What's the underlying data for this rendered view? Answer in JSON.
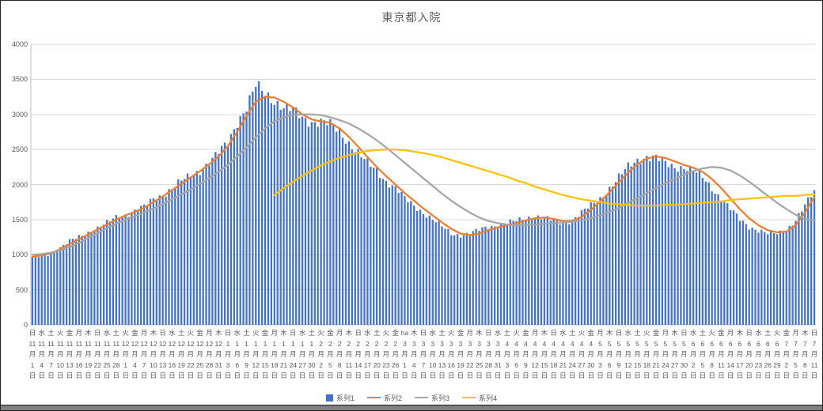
{
  "title": "東京都入院",
  "legend": [
    "系列1",
    "系列2",
    "系列3",
    "系列4"
  ],
  "colors": {
    "bar": "#4472C4",
    "line2": "#ED7D31",
    "line3": "#A5A5A5",
    "line4": "#FFC000",
    "grid": "#D9D9D9",
    "axis": "#BFBFBF",
    "axis_text": "#595959",
    "title_text": "#595959",
    "bottom_bar": "#7f7f7f"
  },
  "y_axis": {
    "min": 0,
    "max": 4000,
    "step": 500,
    "labels": [
      "0",
      "500",
      "1000",
      "1500",
      "2000",
      "2500",
      "3000",
      "3500",
      "4000"
    ]
  },
  "x_axis": {
    "note": "daily bars, tick label every 3 days, vertical stacked format: 曜日 / 月 / 日",
    "ticks": [
      [
        "日",
        "11",
        "1"
      ],
      [
        "水",
        "11",
        "4"
      ],
      [
        "土",
        "11",
        "7"
      ],
      [
        "火",
        "11",
        "10"
      ],
      [
        "金",
        "11",
        "13"
      ],
      [
        "月",
        "11",
        "16"
      ],
      [
        "木",
        "11",
        "19"
      ],
      [
        "日",
        "11",
        "22"
      ],
      [
        "水",
        "11",
        "25"
      ],
      [
        "土",
        "11",
        "28"
      ],
      [
        "火",
        "12",
        "1"
      ],
      [
        "金",
        "12",
        "4"
      ],
      [
        "月",
        "12",
        "7"
      ],
      [
        "木",
        "12",
        "10"
      ],
      [
        "日",
        "12",
        "13"
      ],
      [
        "水",
        "12",
        "16"
      ],
      [
        "土",
        "12",
        "19"
      ],
      [
        "火",
        "12",
        "22"
      ],
      [
        "金",
        "12",
        "25"
      ],
      [
        "月",
        "12",
        "28"
      ],
      [
        "木",
        "12",
        "31"
      ],
      [
        "日",
        "1",
        "3"
      ],
      [
        "水",
        "1",
        "6"
      ],
      [
        "土",
        "1",
        "9"
      ],
      [
        "火",
        "1",
        "12"
      ],
      [
        "金",
        "1",
        "15"
      ],
      [
        "月",
        "1",
        "18"
      ],
      [
        "木",
        "1",
        "21"
      ],
      [
        "日",
        "1",
        "24"
      ],
      [
        "水",
        "1",
        "27"
      ],
      [
        "土",
        "1",
        "30"
      ],
      [
        "火",
        "2",
        "2"
      ],
      [
        "金",
        "2",
        "5"
      ],
      [
        "月",
        "2",
        "8"
      ],
      [
        "木",
        "2",
        "11"
      ],
      [
        "日",
        "2",
        "14"
      ],
      [
        "水",
        "2",
        "17"
      ],
      [
        "土",
        "2",
        "20"
      ],
      [
        "火",
        "2",
        "23"
      ],
      [
        "金",
        "2",
        "26"
      ],
      [
        "ha",
        "3",
        "1"
      ],
      [
        "木",
        "3",
        "4"
      ],
      [
        "日",
        "3",
        "7"
      ],
      [
        "水",
        "3",
        "10"
      ],
      [
        "土",
        "3",
        "13"
      ],
      [
        "火",
        "3",
        "16"
      ],
      [
        "金",
        "3",
        "19"
      ],
      [
        "月",
        "3",
        "22"
      ],
      [
        "木",
        "3",
        "25"
      ],
      [
        "日",
        "3",
        "28"
      ],
      [
        "水",
        "3",
        "31"
      ],
      [
        "土",
        "4",
        "3"
      ],
      [
        "火",
        "4",
        "6"
      ],
      [
        "金",
        "4",
        "9"
      ],
      [
        "月",
        "4",
        "12"
      ],
      [
        "木",
        "4",
        "15"
      ],
      [
        "日",
        "4",
        "18"
      ],
      [
        "水",
        "4",
        "21"
      ],
      [
        "土",
        "4",
        "24"
      ],
      [
        "火",
        "4",
        "27"
      ],
      [
        "金",
        "4",
        "30"
      ],
      [
        "月",
        "5",
        "3"
      ],
      [
        "木",
        "5",
        "6"
      ],
      [
        "日",
        "5",
        "9"
      ],
      [
        "水",
        "5",
        "12"
      ],
      [
        "土",
        "5",
        "15"
      ],
      [
        "火",
        "5",
        "18"
      ],
      [
        "金",
        "5",
        "21"
      ],
      [
        "月",
        "5",
        "24"
      ],
      [
        "木",
        "5",
        "27"
      ],
      [
        "日",
        "5",
        "30"
      ],
      [
        "水",
        "6",
        "2"
      ],
      [
        "土",
        "6",
        "5"
      ],
      [
        "火",
        "6",
        "8"
      ],
      [
        "金",
        "6",
        "11"
      ],
      [
        "月",
        "6",
        "14"
      ],
      [
        "木",
        "6",
        "17"
      ],
      [
        "日",
        "6",
        "20"
      ],
      [
        "水",
        "6",
        "23"
      ],
      [
        "土",
        "6",
        "26"
      ],
      [
        "火",
        "6",
        "29"
      ],
      [
        "金",
        "7",
        "2"
      ],
      [
        "月",
        "7",
        "5"
      ],
      [
        "木",
        "7",
        "8"
      ],
      [
        "日",
        "7",
        "11"
      ]
    ]
  },
  "chart_data": {
    "type": "bar+line combo",
    "title": "東京都入院",
    "ylim": [
      0,
      4000
    ],
    "grid": "horizontal, every 500",
    "legend_position": "bottom center",
    "x_range": "11月1日 〜 7月11日 (values sampled at each 3-day tick; bars are daily)",
    "series": [
      {
        "name": "系列1",
        "type": "bar",
        "color": "#4472C4",
        "values": [
          960,
          980,
          1020,
          1100,
          1190,
          1250,
          1320,
          1380,
          1450,
          1530,
          1570,
          1630,
          1680,
          1790,
          1850,
          1950,
          2050,
          2120,
          2200,
          2320,
          2450,
          2600,
          2900,
          3100,
          3400,
          3300,
          3200,
          3100,
          3050,
          2950,
          2900,
          2900,
          2850,
          2750,
          2600,
          2450,
          2300,
          2200,
          2050,
          1950,
          1800,
          1700,
          1600,
          1500,
          1400,
          1300,
          1280,
          1300,
          1350,
          1400,
          1420,
          1450,
          1480,
          1520,
          1550,
          1520,
          1480,
          1450,
          1500,
          1600,
          1700,
          1800,
          1950,
          2100,
          2250,
          2350,
          2400,
          2380,
          2300,
          2250,
          2250,
          2200,
          2100,
          1950,
          1800,
          1650,
          1500,
          1400,
          1350,
          1300,
          1300,
          1350,
          1500,
          1700,
          1900
        ]
      },
      {
        "name": "系列2",
        "type": "line",
        "color": "#ED7D31",
        "values": [
          970,
          990,
          1020,
          1080,
          1150,
          1220,
          1290,
          1360,
          1430,
          1500,
          1560,
          1610,
          1670,
          1750,
          1830,
          1920,
          2010,
          2100,
          2190,
          2290,
          2400,
          2550,
          2750,
          2980,
          3180,
          3250,
          3240,
          3180,
          3100,
          3000,
          2930,
          2900,
          2880,
          2800,
          2680,
          2540,
          2390,
          2250,
          2120,
          2000,
          1880,
          1770,
          1660,
          1560,
          1460,
          1370,
          1300,
          1280,
          1300,
          1350,
          1390,
          1420,
          1450,
          1490,
          1520,
          1530,
          1510,
          1480,
          1480,
          1540,
          1640,
          1760,
          1890,
          2030,
          2170,
          2290,
          2370,
          2400,
          2380,
          2330,
          2280,
          2240,
          2180,
          2080,
          1950,
          1800,
          1650,
          1520,
          1420,
          1350,
          1320,
          1330,
          1420,
          1600,
          1820
        ]
      },
      {
        "name": "系列3",
        "type": "line",
        "color": "#A5A5A5",
        "values": [
          1000,
          1010,
          1030,
          1060,
          1110,
          1170,
          1240,
          1310,
          1380,
          1440,
          1500,
          1550,
          1600,
          1660,
          1720,
          1790,
          1860,
          1930,
          2010,
          2090,
          2180,
          2280,
          2400,
          2530,
          2670,
          2800,
          2900,
          2960,
          2990,
          3000,
          3000,
          2990,
          2960,
          2920,
          2870,
          2800,
          2720,
          2630,
          2530,
          2420,
          2310,
          2200,
          2090,
          1980,
          1870,
          1770,
          1680,
          1600,
          1530,
          1480,
          1450,
          1430,
          1420,
          1420,
          1430,
          1440,
          1450,
          1460,
          1470,
          1490,
          1520,
          1560,
          1610,
          1670,
          1740,
          1810,
          1880,
          1950,
          2020,
          2080,
          2140,
          2190,
          2230,
          2250,
          2240,
          2200,
          2130,
          2040,
          1940,
          1840,
          1740,
          1650,
          1570,
          1510,
          1490
        ]
      },
      {
        "name": "系列4",
        "type": "line",
        "color": "#FFC000",
        "values": [
          null,
          null,
          null,
          null,
          null,
          null,
          null,
          null,
          null,
          null,
          null,
          null,
          null,
          null,
          null,
          null,
          null,
          null,
          null,
          null,
          null,
          null,
          null,
          null,
          null,
          null,
          1850,
          1950,
          2040,
          2120,
          2200,
          2270,
          2330,
          2380,
          2420,
          2450,
          2480,
          2490,
          2500,
          2500,
          2490,
          2470,
          2450,
          2420,
          2390,
          2350,
          2310,
          2270,
          2230,
          2190,
          2150,
          2110,
          2060,
          2020,
          1970,
          1930,
          1890,
          1850,
          1820,
          1790,
          1770,
          1750,
          1730,
          1720,
          1710,
          1700,
          1700,
          1700,
          1710,
          1710,
          1720,
          1730,
          1740,
          1750,
          1760,
          1780,
          1790,
          1800,
          1810,
          1820,
          1830,
          1840,
          1840,
          1850,
          1860
        ]
      }
    ]
  }
}
